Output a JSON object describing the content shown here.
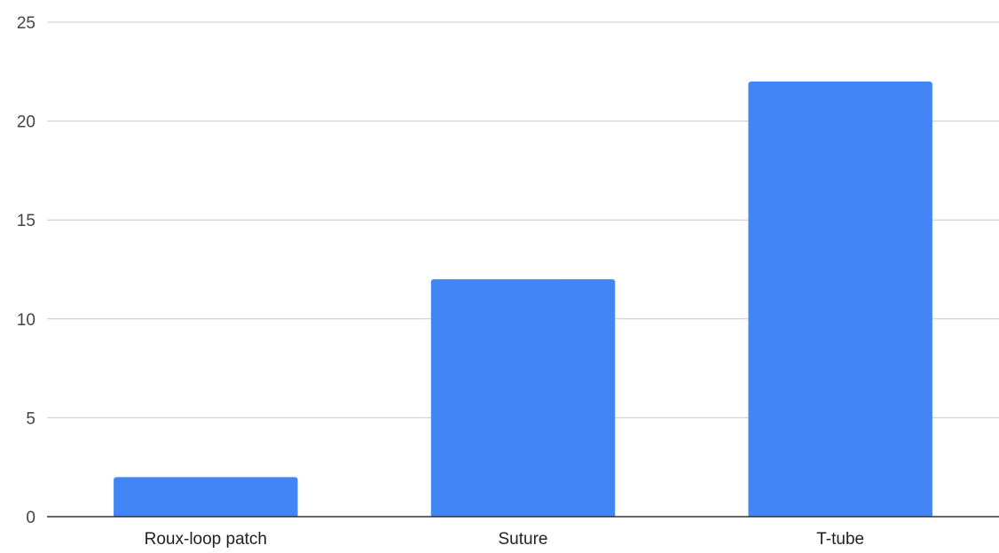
{
  "chart_data": {
    "type": "bar",
    "title": "",
    "xlabel": "",
    "ylabel": "",
    "categories": [
      "Roux-loop patch",
      "Suture",
      "T-tube"
    ],
    "series": [
      {
        "values": [
          2,
          12,
          22
        ],
        "color": "#4285f4"
      }
    ],
    "ylim": [
      0,
      25
    ],
    "yticks": [
      0,
      5,
      10,
      15,
      20,
      25
    ],
    "grid": true,
    "legend": "none"
  }
}
